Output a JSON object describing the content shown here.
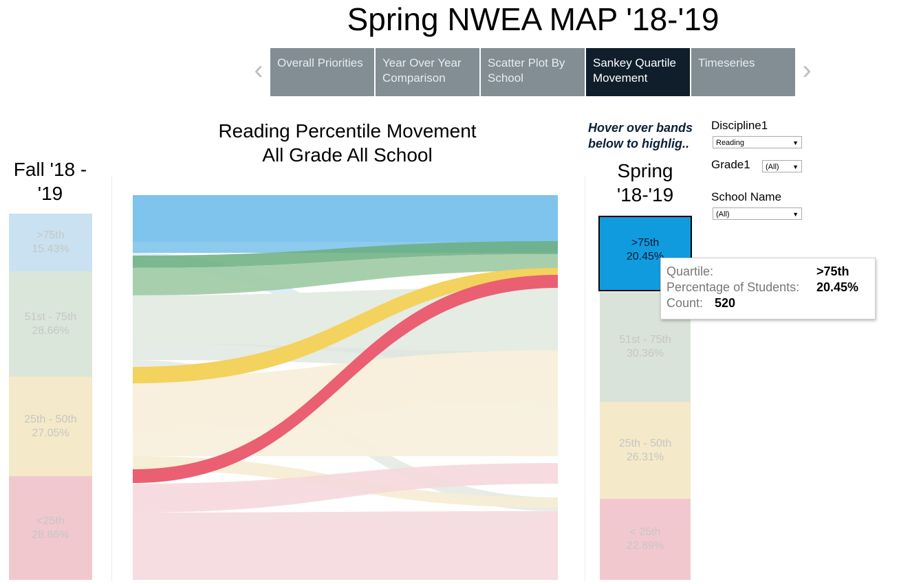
{
  "page_title": "Spring NWEA MAP '18-'19",
  "nav": {
    "tabs": [
      {
        "label": "Overall Priorities",
        "active": false
      },
      {
        "label": "Year Over Year Comparison",
        "active": false
      },
      {
        "label": "Scatter Plot By School",
        "active": false
      },
      {
        "label": "Sankey Quartile Movement",
        "active": true
      },
      {
        "label": "Timeseries",
        "active": false
      }
    ],
    "prev_icon": "chevron-left-icon",
    "next_icon": "chevron-right-icon"
  },
  "chart": {
    "title_line1": "Reading Percentile Movement",
    "title_line2": "All Grade All School",
    "left_header_line1": "Fall  '18 -",
    "left_header_line2": "'19",
    "right_header_line1": "Spring",
    "right_header_line2": "'18-'19"
  },
  "hint": {
    "line1": "Hover over bands",
    "line2": "below  to highlig.."
  },
  "filters": {
    "discipline_label": "Discipline1",
    "discipline_value": "Reading",
    "grade_label": "Grade1",
    "grade_value": "(All)",
    "school_label": "School Name",
    "school_value": "(All)"
  },
  "fall_quartiles": [
    {
      "label": ">75th",
      "pct": "15.43%"
    },
    {
      "label": "51st - 75th",
      "pct": "28.66%"
    },
    {
      "label": "25th - 50th",
      "pct": "27.05%"
    },
    {
      "label": "<25th",
      "pct": "28.86%"
    }
  ],
  "spring_quartiles": [
    {
      "label": ">75th",
      "pct": "20.45%"
    },
    {
      "label": "51st - 75th",
      "pct": "30.36%"
    },
    {
      "label": "25th - 50th",
      "pct": "26.31%"
    },
    {
      "label": "< 25th",
      "pct": "22.89%"
    }
  ],
  "tooltip": {
    "quartile_key": "Quartile:",
    "quartile_val": ">75th",
    "pct_key": "Percentage of Students:",
    "pct_val": "20.45%",
    "count_key": "Count:",
    "count_val": "520"
  },
  "colors": {
    "blue": "#7fc4ec",
    "green": "#8ec49a",
    "yellow": "#f3d25e",
    "red": "#ea5f72",
    "selected": "#119bdf"
  }
}
